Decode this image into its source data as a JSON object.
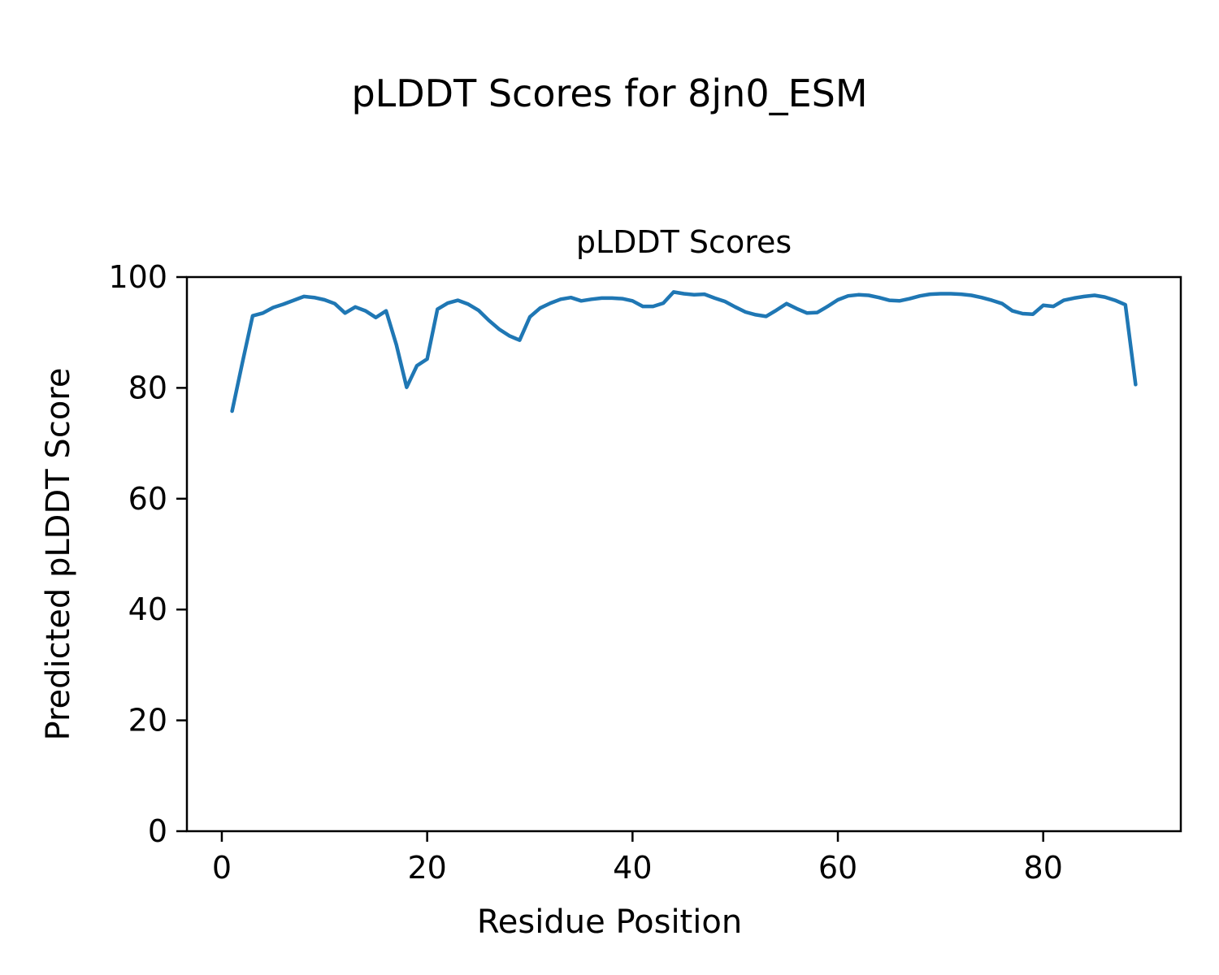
{
  "figure": {
    "suptitle": "pLDDT Scores for 8jn0_ESM"
  },
  "chart_data": {
    "type": "line",
    "title": "pLDDT Scores",
    "xlabel": "Residue Position",
    "ylabel": "Predicted pLDDT Score",
    "series_name": "pLDDT",
    "line_color": "#1f77b4",
    "grid": false,
    "legend": false,
    "xlim": [
      -3.4,
      93.4
    ],
    "ylim": [
      0,
      100
    ],
    "xticks": [
      0,
      20,
      40,
      60,
      80
    ],
    "yticks": [
      0,
      20,
      40,
      60,
      80,
      100
    ],
    "x": [
      1,
      2,
      3,
      4,
      5,
      6,
      7,
      8,
      9,
      10,
      11,
      12,
      13,
      14,
      15,
      16,
      17,
      18,
      19,
      20,
      21,
      22,
      23,
      24,
      25,
      26,
      27,
      28,
      29,
      30,
      31,
      32,
      33,
      34,
      35,
      36,
      37,
      38,
      39,
      40,
      41,
      42,
      43,
      44,
      45,
      46,
      47,
      48,
      49,
      50,
      51,
      52,
      53,
      54,
      55,
      56,
      57,
      58,
      59,
      60,
      61,
      62,
      63,
      64,
      65,
      66,
      67,
      68,
      69,
      70,
      71,
      72,
      73,
      74,
      75,
      76,
      77,
      78,
      79,
      80,
      81,
      82,
      83,
      84,
      85,
      86,
      87,
      88,
      89
    ],
    "values": [
      75.8,
      84.5,
      93.0,
      93.5,
      94.5,
      95.1,
      95.8,
      96.5,
      96.3,
      95.9,
      95.2,
      93.5,
      94.6,
      93.9,
      92.7,
      93.9,
      87.8,
      80.1,
      84.0,
      85.2,
      94.2,
      95.3,
      95.8,
      95.1,
      94.0,
      92.2,
      90.6,
      89.4,
      88.6,
      92.8,
      94.4,
      95.3,
      96.0,
      96.3,
      95.7,
      96.0,
      96.2,
      96.2,
      96.1,
      95.7,
      94.7,
      94.7,
      95.3,
      97.3,
      97.0,
      96.8,
      96.9,
      96.2,
      95.6,
      94.6,
      93.7,
      93.2,
      92.9,
      94.0,
      95.2,
      94.3,
      93.5,
      93.6,
      94.7,
      95.9,
      96.6,
      96.8,
      96.7,
      96.3,
      95.8,
      95.7,
      96.1,
      96.6,
      96.9,
      97.0,
      97.0,
      96.9,
      96.7,
      96.3,
      95.8,
      95.2,
      93.9,
      93.4,
      93.3,
      94.9,
      94.7,
      95.8,
      96.2,
      96.5,
      96.7,
      96.4,
      95.8,
      95.0,
      80.6
    ]
  }
}
